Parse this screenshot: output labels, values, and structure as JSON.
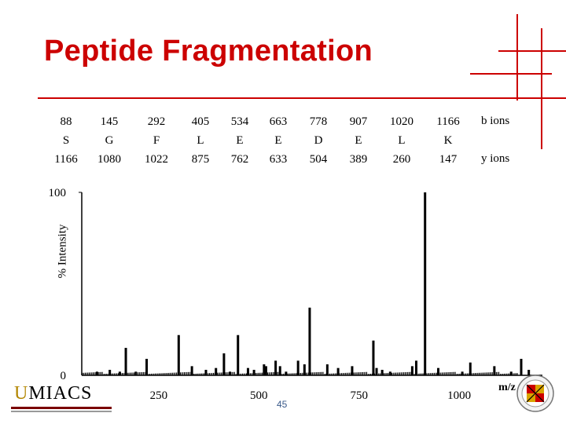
{
  "title": "Peptide Fragmentation",
  "page_number": "45",
  "fragments": [
    {
      "b": "88",
      "residue": "S",
      "y": "1166"
    },
    {
      "b": "145",
      "residue": "G",
      "y": "1080"
    },
    {
      "b": "292",
      "residue": "F",
      "y": "1022"
    },
    {
      "b": "405",
      "residue": "L",
      "y": "875"
    },
    {
      "b": "534",
      "residue": "E",
      "y": "762"
    },
    {
      "b": "663",
      "residue": "E",
      "y": "633"
    },
    {
      "b": "778",
      "residue": "D",
      "y": "504"
    },
    {
      "b": "907",
      "residue": "E",
      "y": "389"
    },
    {
      "b": "1020",
      "residue": "L",
      "y": "260"
    },
    {
      "b": "1166",
      "residue": "K",
      "y": "147"
    }
  ],
  "ion_labels": {
    "b": "b ions",
    "y": "y ions"
  },
  "logo_text": {
    "prefix": "U",
    "main": "MIACS"
  },
  "colors": {
    "title": "#cc0000",
    "accent": "#cc0000",
    "peaks": "#000000"
  },
  "chart_data": {
    "type": "bar",
    "title": "",
    "xlabel": "m/z",
    "ylabel": "% Intensity",
    "xlim": [
      50,
      1200
    ],
    "ylim": [
      0,
      100
    ],
    "xticks": [
      "250",
      "500",
      "750",
      "1000"
    ],
    "yticks": [
      "0",
      "100"
    ],
    "grid": false,
    "x": [
      88,
      120,
      145,
      160,
      185,
      212,
      292,
      325,
      360,
      385,
      405,
      420,
      440,
      465,
      480,
      505,
      510,
      534,
      545,
      560,
      590,
      606,
      619,
      663,
      690,
      725,
      778,
      786,
      800,
      820,
      875,
      885,
      907,
      940,
      1000,
      1020,
      1080,
      1122,
      1147,
      1166
    ],
    "values": [
      2,
      3,
      2,
      15,
      2,
      9,
      22,
      5,
      3,
      4,
      12,
      2,
      22,
      4,
      3,
      6,
      5,
      8,
      5,
      2,
      8,
      6,
      37,
      6,
      4,
      5,
      19,
      4,
      3,
      2,
      5,
      8,
      100,
      4,
      2,
      7,
      5,
      2,
      9,
      3
    ]
  }
}
